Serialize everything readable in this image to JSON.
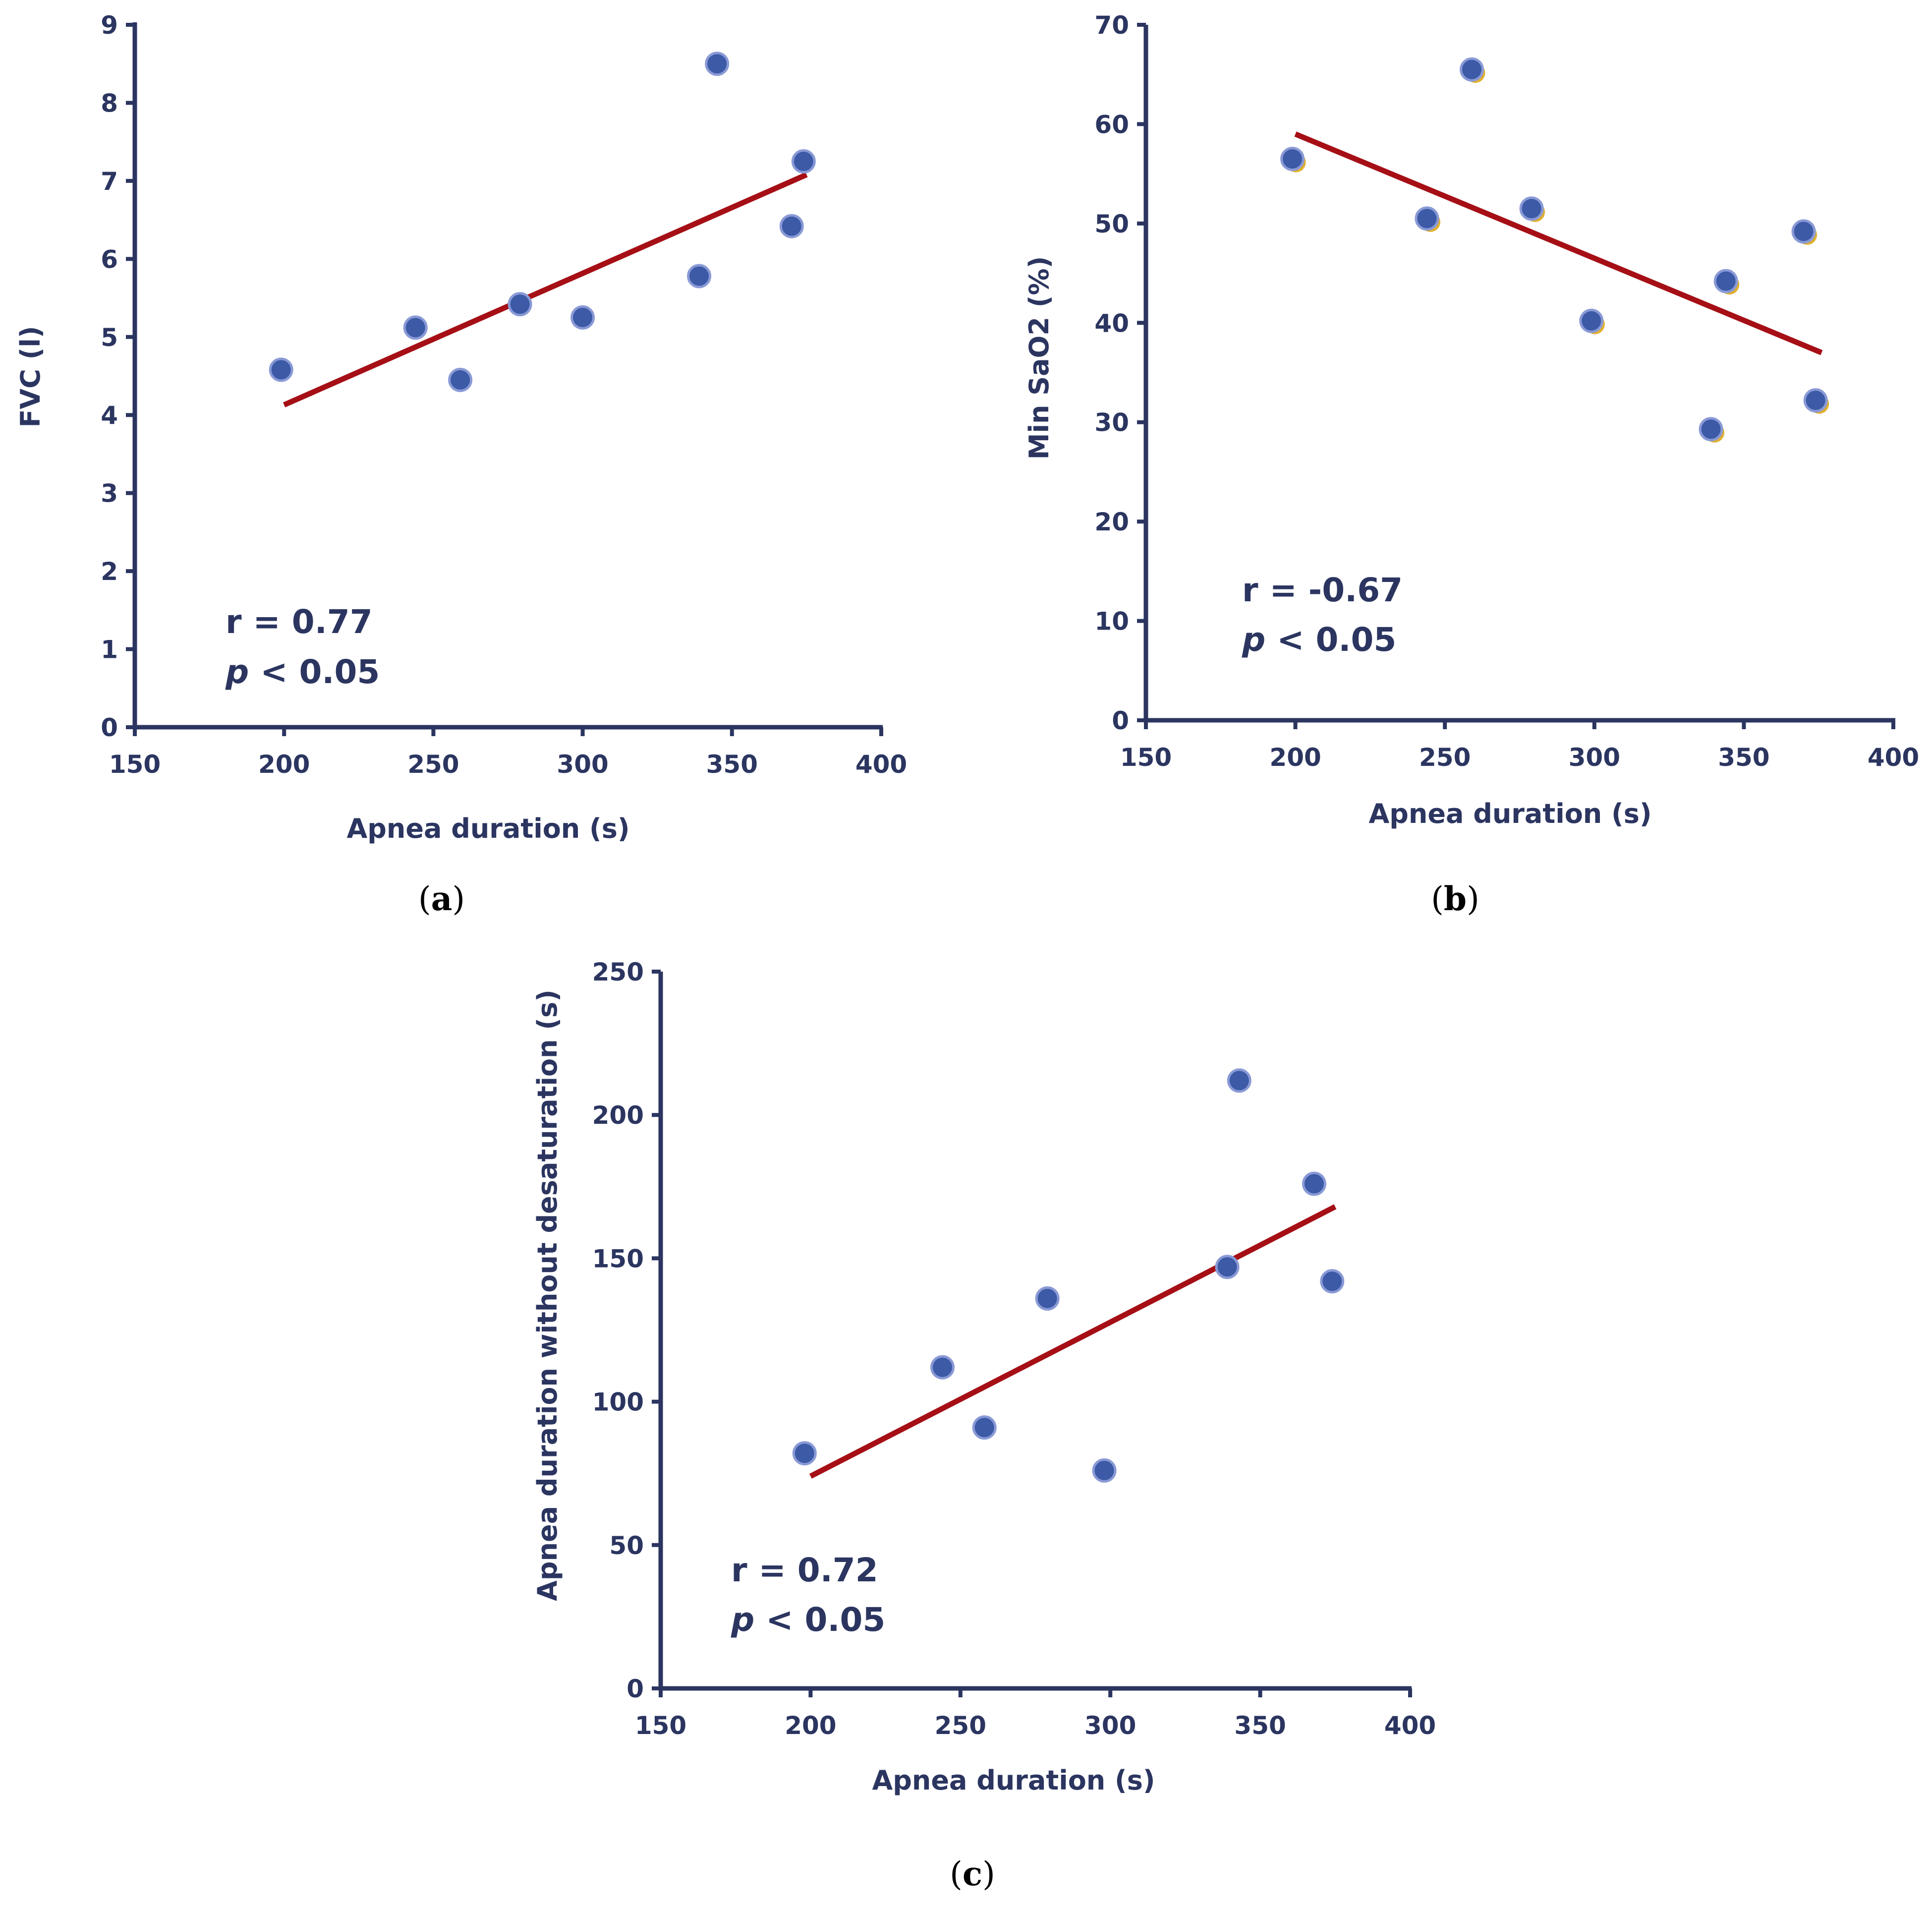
{
  "colors": {
    "axis": "#2b3560",
    "point": "#3c5aa6",
    "point_edge": "#8a9ad6",
    "trend": "#a50f15",
    "marker_shadow": "#e0b030"
  },
  "chart_data": [
    {
      "id": "a",
      "type": "scatter",
      "panel": {
        "open": "(",
        "letter": "a",
        "close": ")"
      },
      "xlabel": "Apnea duration (s)",
      "ylabel": "FVC (l)",
      "xlim": [
        150,
        400
      ],
      "ylim": [
        0,
        9
      ],
      "xticks": [
        150,
        200,
        250,
        300,
        350,
        400
      ],
      "yticks": [
        0,
        1,
        2,
        3,
        4,
        5,
        6,
        7,
        8,
        9
      ],
      "x": [
        199,
        244,
        259,
        279,
        300,
        339,
        345,
        370,
        374
      ],
      "y": [
        4.58,
        5.12,
        4.45,
        5.42,
        5.25,
        5.78,
        8.5,
        6.42,
        7.25
      ],
      "trend": {
        "x": [
          200,
          375
        ],
        "y": [
          4.13,
          7.08
        ]
      },
      "stats": {
        "r": "r = 0.77",
        "p_sym": "p",
        "p_rest": " < 0.05"
      }
    },
    {
      "id": "b",
      "type": "scatter",
      "panel": {
        "open": "(",
        "letter": "b",
        "close": ")"
      },
      "xlabel": "Apnea duration (s)",
      "ylabel": "Min SaO2 (%)",
      "xlim": [
        150,
        400
      ],
      "ylim": [
        0,
        70
      ],
      "xticks": [
        150,
        200,
        250,
        300,
        350,
        400
      ],
      "yticks": [
        0,
        10,
        20,
        30,
        40,
        50,
        60,
        70
      ],
      "x": [
        199,
        244,
        259,
        279,
        299,
        339,
        344,
        370,
        374
      ],
      "y": [
        56.5,
        50.5,
        65.5,
        51.5,
        40.2,
        29.3,
        44.2,
        49.2,
        32.2
      ],
      "trend": {
        "x": [
          200,
          376
        ],
        "y": [
          59,
          37
        ]
      },
      "stats": {
        "r": "r = -0.67",
        "p_sym": "p",
        "p_rest": " < 0.05"
      }
    },
    {
      "id": "c",
      "type": "scatter",
      "panel": {
        "open": "(",
        "letter": "c",
        "close": ")"
      },
      "xlabel": "Apnea duration (s)",
      "ylabel": "Apnea duration without desaturation (s)",
      "xlim": [
        150,
        400
      ],
      "ylim": [
        0,
        250
      ],
      "xticks": [
        150,
        200,
        250,
        300,
        350,
        400
      ],
      "yticks": [
        0,
        50,
        100,
        150,
        200,
        250
      ],
      "x": [
        198,
        244,
        258,
        279,
        298,
        339,
        343,
        368,
        374
      ],
      "y": [
        82,
        112,
        91,
        136,
        76,
        147,
        212,
        176,
        142
      ],
      "trend": {
        "x": [
          200,
          375
        ],
        "y": [
          74,
          168
        ]
      },
      "stats": {
        "r": "r = 0.72",
        "p_sym": "p",
        "p_rest": " < 0.05"
      }
    }
  ]
}
